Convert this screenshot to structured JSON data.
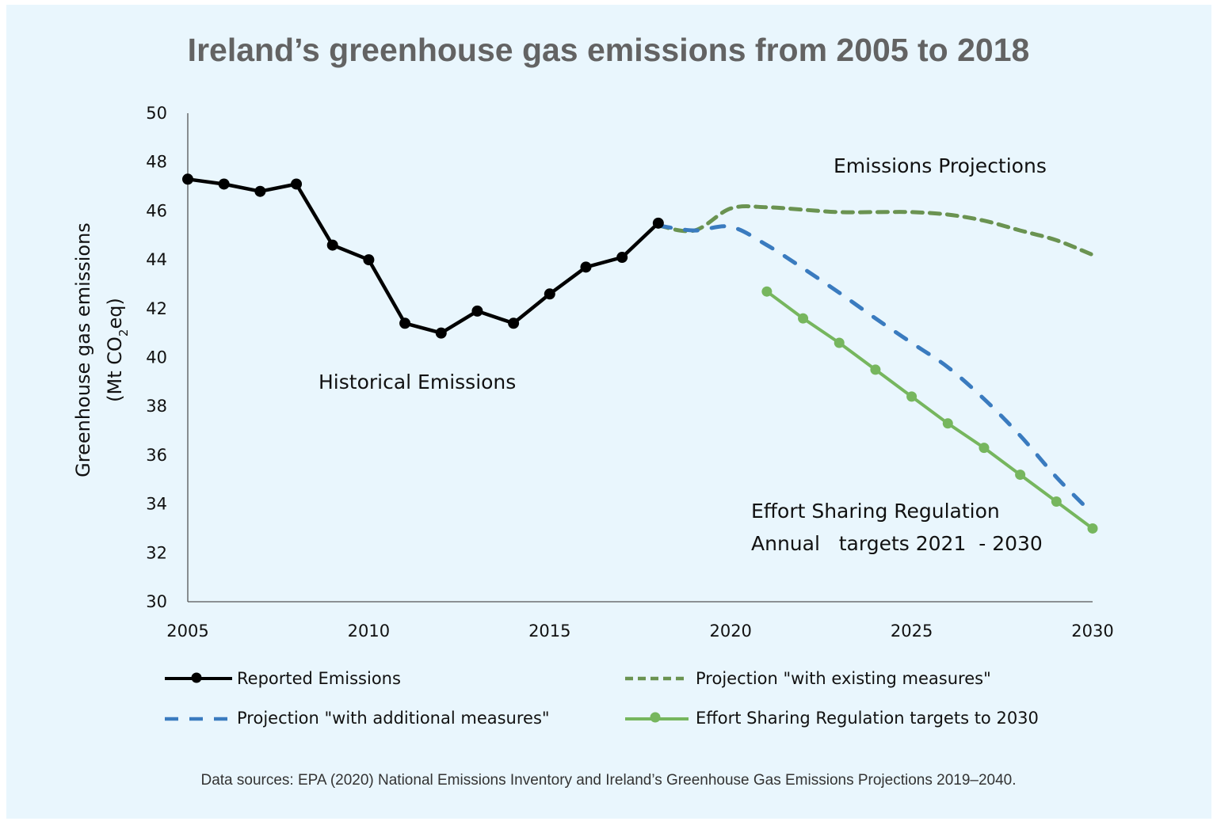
{
  "chart_data": {
    "type": "line",
    "title": "Ireland’s greenhouse gas emissions from 2005 to 2018",
    "xlabel": "",
    "ylabel_line1": "Greenhouse gas emissions",
    "ylabel_line2_prefix": "(Mt CO",
    "ylabel_line2_sub": "2",
    "ylabel_line2_suffix": "eq)",
    "xlim": [
      2005,
      2030
    ],
    "ylim": [
      30,
      50
    ],
    "x_ticks": [
      2005,
      2010,
      2015,
      2020,
      2025,
      2030
    ],
    "x_tick_labels": [
      "2005",
      "2010",
      "2015",
      "2020",
      "2025",
      "2030"
    ],
    "y_ticks": [
      30,
      32,
      34,
      36,
      38,
      40,
      42,
      44,
      46,
      48,
      50
    ],
    "y_tick_labels": [
      "30",
      "32",
      "34",
      "36",
      "38",
      "40",
      "42",
      "44",
      "46",
      "48",
      "50"
    ],
    "grid": false,
    "legend_position": "bottom",
    "series": [
      {
        "name": "Reported Emissions",
        "style": "solid-markers",
        "color": "#000000",
        "x": [
          2005,
          2006,
          2007,
          2008,
          2009,
          2010,
          2011,
          2012,
          2013,
          2014,
          2015,
          2016,
          2017,
          2018
        ],
        "values": [
          47.3,
          47.1,
          46.8,
          47.1,
          44.6,
          44.0,
          41.4,
          41.0,
          41.9,
          41.4,
          42.6,
          43.7,
          44.1,
          45.5
        ]
      },
      {
        "name": "Projection \"with existing measures\"",
        "style": "short-dash",
        "color": "#6a9351",
        "x": [
          2018,
          2019,
          2020,
          2021,
          2022,
          2023,
          2024,
          2025,
          2026,
          2027,
          2028,
          2029,
          2030
        ],
        "values": [
          45.4,
          45.2,
          46.1,
          46.15,
          46.05,
          45.95,
          45.95,
          45.95,
          45.85,
          45.6,
          45.2,
          44.8,
          44.2
        ]
      },
      {
        "name": "Projection \"with additional measures\"",
        "style": "long-dash",
        "color": "#3a7bbf",
        "x": [
          2018,
          2019,
          2020,
          2021,
          2022,
          2023,
          2024,
          2025,
          2026,
          2027,
          2028,
          2029,
          2030
        ],
        "values": [
          45.4,
          45.2,
          45.35,
          44.6,
          43.65,
          42.65,
          41.6,
          40.6,
          39.6,
          38.3,
          36.8,
          35.1,
          33.6
        ]
      },
      {
        "name": "Effort Sharing Regulation targets to 2030",
        "style": "solid-markers",
        "color": "#76b65e",
        "x": [
          2021,
          2022,
          2023,
          2024,
          2025,
          2026,
          2027,
          2028,
          2029,
          2030
        ],
        "values": [
          42.7,
          41.6,
          40.6,
          39.5,
          38.4,
          37.3,
          36.3,
          35.2,
          34.1,
          33.0
        ]
      }
    ],
    "annotations": {
      "historical": "Historical Emissions",
      "projections": "Emissions Projections",
      "esr_line1": "Effort Sharing Regulation",
      "esr_line2": "Annual   targets 2021  - 2030"
    },
    "legend": [
      {
        "label": "Reported Emissions"
      },
      {
        "label": "Projection \"with existing measures\""
      },
      {
        "label": "Projection \"with additional measures\""
      },
      {
        "label": "Effort Sharing Regulation targets to 2030"
      }
    ],
    "source": "Data sources: EPA (2020) National Emissions Inventory and Ireland’s Greenhouse Gas Emissions Projections 2019–2040."
  },
  "colors": {
    "background": "#e9f6fd",
    "axis": "#555555"
  }
}
